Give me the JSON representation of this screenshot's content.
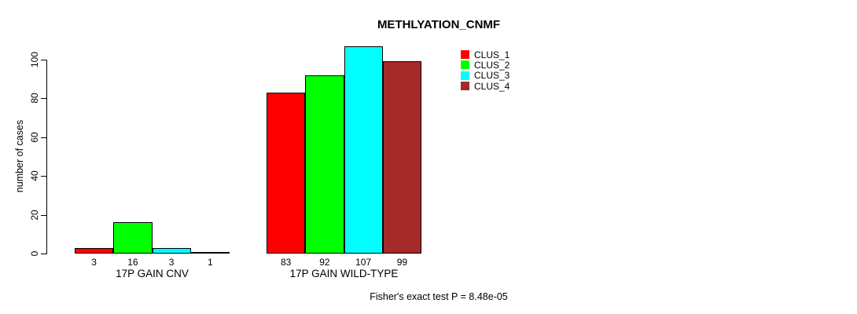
{
  "chart_data": {
    "type": "bar",
    "title": "METHLYATION_CNMF",
    "xlabel": "",
    "ylabel": "number of cases",
    "categories": [
      "17P GAIN CNV",
      "17P GAIN WILD-TYPE"
    ],
    "series": [
      {
        "name": "CLUS_1",
        "color": "#FF0000",
        "values": [
          3,
          83
        ]
      },
      {
        "name": "CLUS_2",
        "color": "#00FF00",
        "values": [
          16,
          92
        ]
      },
      {
        "name": "CLUS_3",
        "color": "#00FFFF",
        "values": [
          3,
          107
        ]
      },
      {
        "name": "CLUS_4",
        "color": "#A52A2A",
        "values": [
          1,
          99
        ]
      }
    ],
    "yticks": [
      0,
      20,
      40,
      60,
      80,
      100
    ],
    "ylim": [
      0,
      110
    ],
    "grid": false,
    "bar_value_labels": true,
    "legend_position": "top-right",
    "annotation": "Fisher's exact test P = 8.48e-05"
  }
}
